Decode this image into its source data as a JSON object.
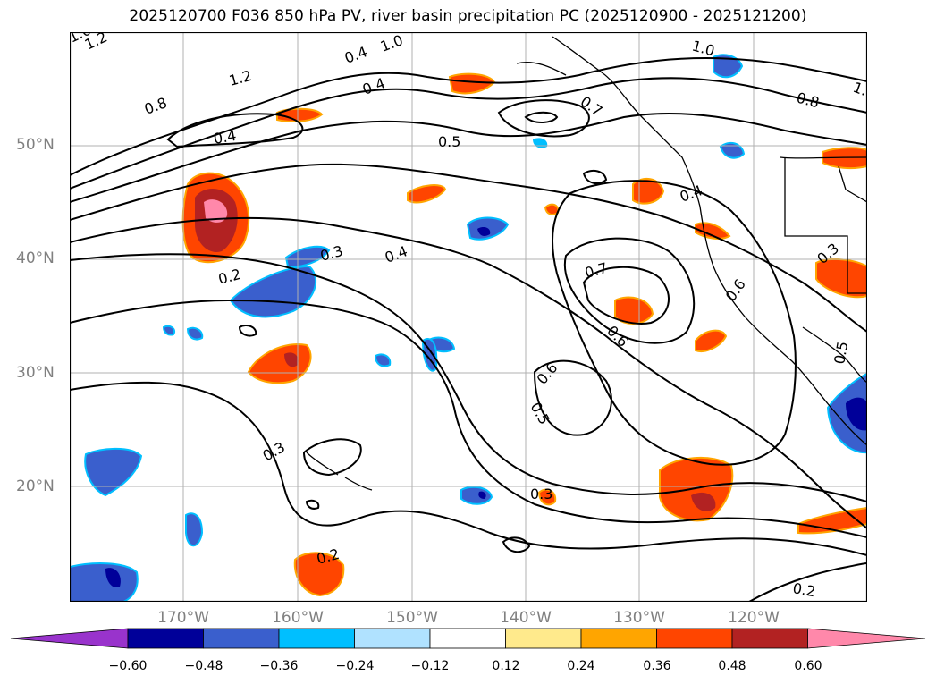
{
  "title": "2025120700 F036 850 hPa PV, river basin precipitation PC (2025120900 - 2025121200)",
  "map": {
    "latitude_labels": [
      "50°N",
      "40°N",
      "30°N",
      "20°N"
    ],
    "longitude_labels": [
      "170°W",
      "160°W",
      "150°W",
      "140°W",
      "130°W",
      "120°W"
    ],
    "contour_labels": [
      "1.0",
      "1.2",
      "0.4",
      "1.0",
      "1.2",
      "0.8",
      "0.4",
      "0.5",
      "0.7",
      "1.0",
      "0.8",
      "1.",
      "0.4",
      "0.4",
      "0.3",
      "0.4",
      "0.2",
      "0.7",
      "0.6",
      "0.6",
      "0.6",
      "0.5",
      "0.5",
      "0.3",
      "0.3",
      "0.2",
      "0.3",
      "0.2"
    ],
    "contour_color": "#000000",
    "grid_color": "#b0b0b0",
    "land_outline_color": "#000000"
  },
  "colorbar": {
    "tick_labels": [
      "−0.60",
      "−0.48",
      "−0.36",
      "−0.24",
      "−0.12",
      "0.12",
      "0.24",
      "0.36",
      "0.48",
      "0.60"
    ],
    "colors": [
      "#9933cc",
      "#000099",
      "#3a5fcd",
      "#00bfff",
      "#b0e2ff",
      "#ffffff",
      "#ffea8c",
      "#ffa500",
      "#ff4500",
      "#b22222",
      "#ff88aa"
    ]
  }
}
